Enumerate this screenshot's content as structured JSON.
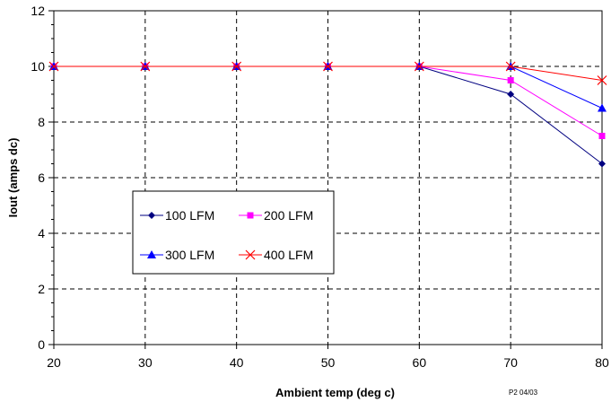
{
  "chart_data": {
    "type": "line",
    "title": "",
    "xlabel": "Ambient temp (deg c)",
    "ylabel": "Iout (amps dc)",
    "x": [
      20,
      30,
      40,
      50,
      60,
      70,
      80
    ],
    "xlim": [
      20,
      80
    ],
    "ylim": [
      0,
      12
    ],
    "xticks": [
      "20",
      "30",
      "40",
      "50",
      "60",
      "70",
      "80"
    ],
    "yticks": [
      "0",
      "2",
      "4",
      "6",
      "8",
      "10",
      "12"
    ],
    "grid": true,
    "legend_position": "lower-left",
    "series": [
      {
        "name": "100 LFM",
        "values": [
          10,
          10,
          10,
          10,
          10,
          9,
          6.5
        ],
        "color": "#000080",
        "marker": "diamond"
      },
      {
        "name": "200 LFM",
        "values": [
          10,
          10,
          10,
          10,
          10,
          9.5,
          7.5
        ],
        "color": "#ff00ff",
        "marker": "square"
      },
      {
        "name": "300 LFM",
        "values": [
          10,
          10,
          10,
          10,
          10,
          10,
          8.5
        ],
        "color": "#0000ff",
        "marker": "triangle"
      },
      {
        "name": "400 LFM",
        "values": [
          10,
          10,
          10,
          10,
          10,
          10,
          9.5
        ],
        "color": "#ff0000",
        "marker": "x"
      }
    ],
    "annotation": "P2 04/03"
  }
}
